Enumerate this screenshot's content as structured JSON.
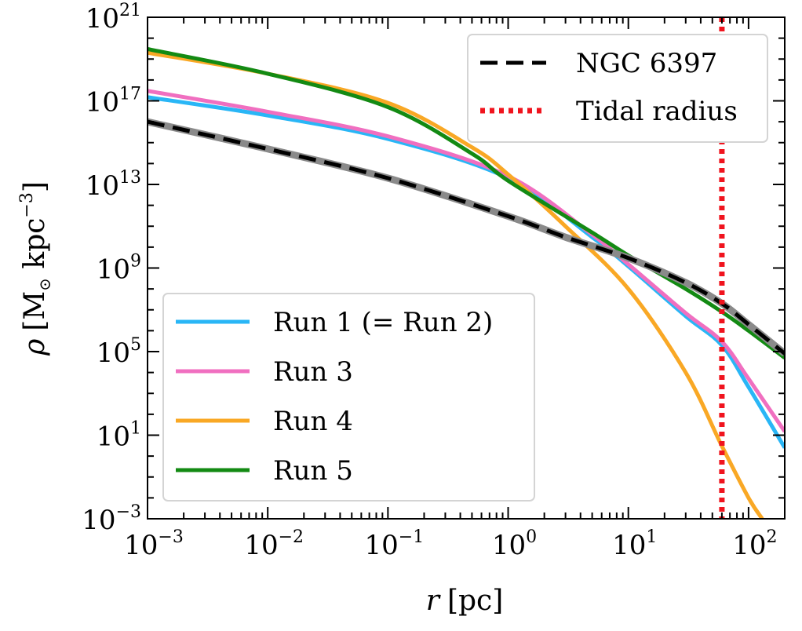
{
  "chart_data": {
    "type": "line",
    "xlabel": {
      "var": "r",
      "unit": "[pc]"
    },
    "ylabel": {
      "var": "ρ",
      "open": "[M",
      "sub": "⊙",
      "mid": " kpc",
      "exp": "−3",
      "close": "]"
    },
    "x_scale": "log",
    "y_scale": "log",
    "xlim": [
      0.001,
      200
    ],
    "ylim": [
      0.001,
      1e+21
    ],
    "grid": false,
    "x_ticks": [
      {
        "value": 0.001,
        "base": "10",
        "exp": "−3"
      },
      {
        "value": 0.01,
        "base": "10",
        "exp": "−2"
      },
      {
        "value": 0.1,
        "base": "10",
        "exp": "−1"
      },
      {
        "value": 1,
        "base": "10",
        "exp": "0"
      },
      {
        "value": 10,
        "base": "10",
        "exp": "1"
      },
      {
        "value": 100,
        "base": "10",
        "exp": "2"
      }
    ],
    "y_ticks": [
      {
        "value": 0.001,
        "base": "10",
        "exp": "−3"
      },
      {
        "value": 10,
        "base": "10",
        "exp": "1"
      },
      {
        "value": 100000,
        "base": "10",
        "exp": "5"
      },
      {
        "value": 1000000000.0,
        "base": "10",
        "exp": "9"
      },
      {
        "value": 10000000000000.0,
        "base": "10",
        "exp": "13"
      },
      {
        "value": 1e+17,
        "base": "10",
        "exp": "17"
      },
      {
        "value": 1e+21,
        "base": "10",
        "exp": "21"
      }
    ],
    "series": [
      {
        "name": "Run 1 (= Run 2)",
        "color": "#29b6f6",
        "style": "solid",
        "points": [
          [
            0.001,
            1.5e+17
          ],
          [
            0.01,
            2e+16
          ],
          [
            0.1,
            1500000000000000.0
          ],
          [
            1,
            20000000000000.0
          ],
          [
            5,
            30000000000.0
          ],
          [
            10,
            1200000000.0
          ],
          [
            30,
            5000000.0
          ],
          [
            60,
            200000.0
          ],
          [
            100,
            2000.0
          ],
          [
            200,
            2.5
          ]
        ]
      },
      {
        "name": "Run 3",
        "color": "#f06fc0",
        "style": "solid",
        "points": [
          [
            0.001,
            3e+17
          ],
          [
            0.01,
            3e+16
          ],
          [
            0.1,
            2000000000000000.0
          ],
          [
            1,
            25000000000000.0
          ],
          [
            5,
            40000000000.0
          ],
          [
            10,
            1500000000.0
          ],
          [
            30,
            7000000.0
          ],
          [
            60,
            300000.0
          ],
          [
            100,
            5000.0
          ],
          [
            200,
            15
          ]
        ]
      },
      {
        "name": "Run 4",
        "color": "#f9a825",
        "style": "solid",
        "points": [
          [
            0.001,
            2e+19
          ],
          [
            0.01,
            2e+18
          ],
          [
            0.1,
            8e+16
          ],
          [
            0.5,
            600000000000000.0
          ],
          [
            1,
            30000000000000.0
          ],
          [
            3,
            100000000000.0
          ],
          [
            10,
            100000000.0
          ],
          [
            30,
            10000.0
          ],
          [
            60,
            3
          ],
          [
            100,
            0.01
          ],
          [
            130,
            0.001
          ]
        ]
      },
      {
        "name": "Run 5",
        "color": "#138a13",
        "style": "solid",
        "points": [
          [
            0.001,
            3e+19
          ],
          [
            0.01,
            2e+18
          ],
          [
            0.1,
            5e+16
          ],
          [
            0.5,
            300000000000000.0
          ],
          [
            1,
            15000000000000.0
          ],
          [
            5,
            50000000000.0
          ],
          [
            10,
            4000000000.0
          ],
          [
            30,
            100000000.0
          ],
          [
            60,
            8000000.0
          ],
          [
            100,
            1000000.0
          ],
          [
            200,
            50000.0
          ]
        ]
      },
      {
        "name": "NGC 6397",
        "color": "#000000",
        "style": "dashed",
        "points": [
          [
            0.001,
            1e+16
          ],
          [
            0.01,
            500000000000000.0
          ],
          [
            0.1,
            20000000000000.0
          ],
          [
            1,
            300000000000.0
          ],
          [
            3,
            30000000000.0
          ],
          [
            10,
            3000000000.0
          ],
          [
            30,
            200000000.0
          ],
          [
            60,
            20000000.0
          ],
          [
            100,
            2000000.0
          ],
          [
            200,
            80000.0
          ]
        ]
      }
    ],
    "vlines": [
      {
        "name": "Tidal radius",
        "x": 60,
        "color": "#f0141e",
        "style": "dotted"
      }
    ],
    "legends": [
      {
        "placement": "top-right",
        "entries": [
          "NGC 6397",
          "Tidal radius"
        ]
      },
      {
        "placement": "lower-left",
        "entries": [
          "Run 1 (= Run 2)",
          "Run 3",
          "Run 4",
          "Run 5"
        ]
      }
    ]
  }
}
